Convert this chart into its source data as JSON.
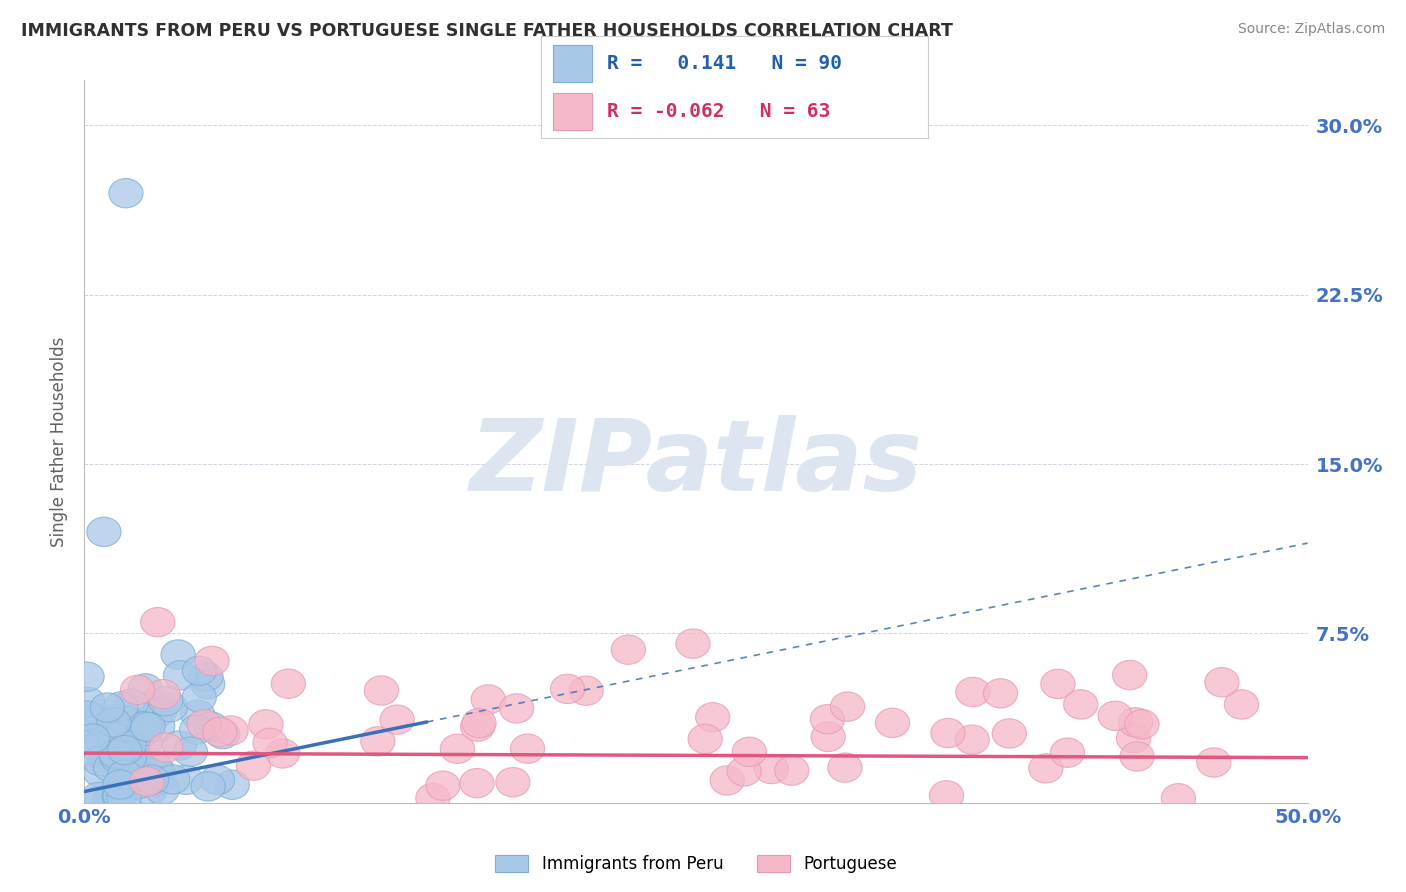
{
  "title": "IMMIGRANTS FROM PERU VS PORTUGUESE SINGLE FATHER HOUSEHOLDS CORRELATION CHART",
  "source": "Source: ZipAtlas.com",
  "ylabel": "Single Father Households",
  "xlim": [
    0.0,
    0.5
  ],
  "ylim": [
    0.0,
    0.32
  ],
  "yticks": [
    0.0,
    0.075,
    0.15,
    0.225,
    0.3
  ],
  "yticklabels": [
    "",
    "7.5%",
    "15.0%",
    "22.5%",
    "30.0%"
  ],
  "blue_R": 0.141,
  "blue_N": 90,
  "pink_R": -0.062,
  "pink_N": 63,
  "blue_color": "#a8c8e8",
  "pink_color": "#f5b8c8",
  "blue_edge_color": "#7aaed4",
  "pink_edge_color": "#e898b4",
  "blue_line_color": "#3a70b8",
  "pink_line_color": "#e05880",
  "watermark": "ZIPatlas",
  "watermark_color": "#dde5f0",
  "background_color": "#ffffff",
  "grid_color": "#c8c8d8",
  "title_color": "#303030",
  "axis_label_color": "#606060",
  "tick_color": "#4472c4",
  "legend_blue_color": "#2060b0",
  "legend_pink_color": "#d03060",
  "blue_line_solid_end": 0.14,
  "blue_line_slope": 0.22,
  "blue_line_intercept": 0.005,
  "pink_line_slope": -0.004,
  "pink_line_intercept": 0.022
}
